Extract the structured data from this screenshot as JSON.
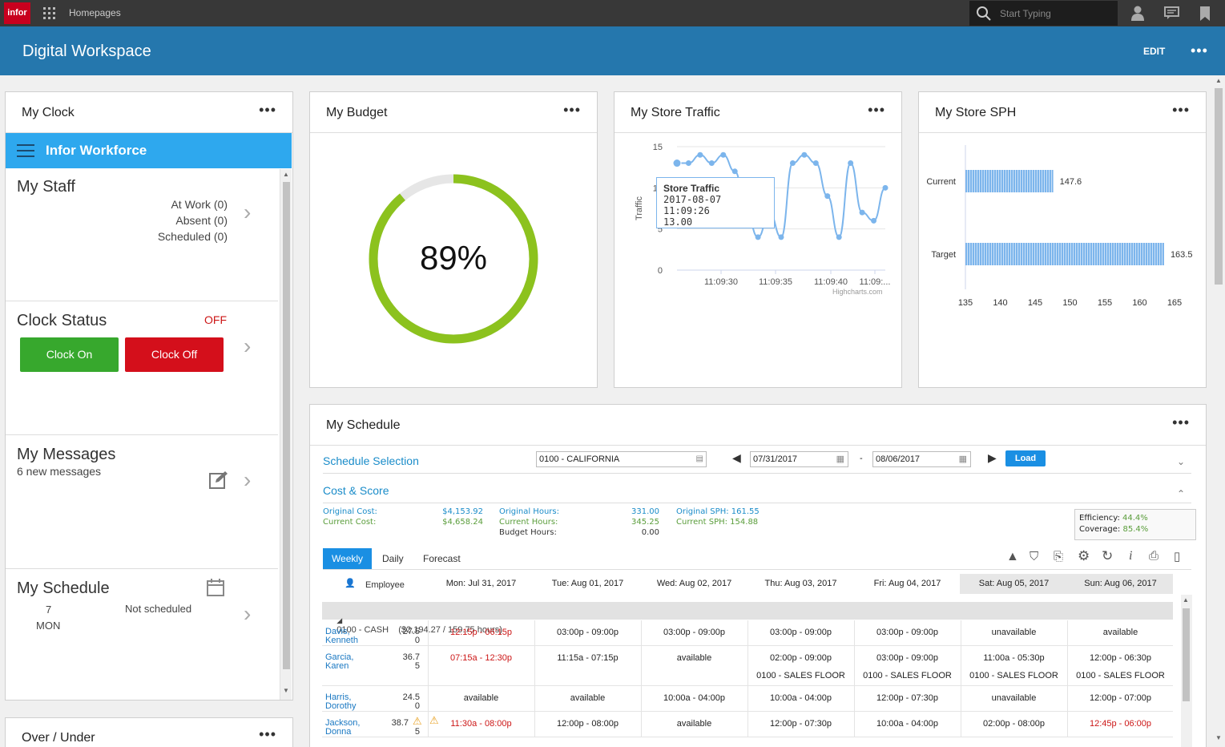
{
  "topbar": {
    "logo": "infor",
    "homepages": "Homepages",
    "search_placeholder": "Start Typing"
  },
  "header": {
    "title": "Digital Workspace",
    "edit": "EDIT"
  },
  "my_clock": {
    "title": "My Clock",
    "app_title": "Infor Workforce",
    "staff": {
      "title": "My Staff",
      "at_work": "At Work (0)",
      "absent": "Absent (0)",
      "scheduled": "Scheduled (0)"
    },
    "clock_status": {
      "title": "Clock Status",
      "status": "OFF",
      "clock_on": "Clock On",
      "clock_off": "Clock Off"
    },
    "messages": {
      "title": "My Messages",
      "subtitle": "6 new messages"
    },
    "schedule": {
      "title": "My Schedule",
      "day_num": "7",
      "day_name": "MON",
      "status": "Not scheduled"
    }
  },
  "over_under": {
    "title": "Over / Under"
  },
  "my_budget": {
    "title": "My Budget",
    "percent_label": "89%",
    "percent": 89
  },
  "my_store_traffic": {
    "title": "My Store Traffic",
    "ylabel": "Traffic",
    "credits": "Highcharts.com",
    "tooltip": {
      "title": "Store Traffic",
      "time": "2017-08-07 11:09:26",
      "value": "13.00"
    }
  },
  "my_store_sph": {
    "title": "My Store SPH"
  },
  "chart_data": [
    {
      "type": "line",
      "ylabel": "Traffic",
      "ylim": [
        0,
        15
      ],
      "y_ticks": [
        "0",
        "5",
        "10",
        "15"
      ],
      "x_ticks": [
        "11:09:30",
        "11:09:35",
        "11:09:40",
        "11:09:..."
      ],
      "series": [
        {
          "name": "Store Traffic",
          "x": [
            0,
            1,
            2,
            3,
            4,
            5,
            6,
            7,
            8,
            9,
            10,
            11,
            12,
            13,
            14,
            15,
            16,
            17,
            18
          ],
          "values": [
            13,
            13,
            14,
            13,
            14,
            12,
            7,
            4,
            7,
            4,
            13,
            14,
            13,
            9,
            4,
            13,
            7,
            6,
            10
          ]
        }
      ]
    },
    {
      "type": "bar",
      "orientation": "horizontal",
      "categories": [
        "Current",
        "Target"
      ],
      "values": [
        147.6,
        163.5
      ],
      "data_labels": [
        "147.6",
        "163.5"
      ],
      "xlim": [
        135,
        165
      ],
      "x_ticks": [
        "135",
        "140",
        "145",
        "150",
        "155",
        "160",
        "165"
      ]
    }
  ],
  "my_schedule": {
    "title": "My Schedule",
    "selection_label": "Schedule Selection",
    "location": "0100 - CALIFORNIA",
    "date_from": "07/31/2017",
    "date_sep": "-",
    "date_to": "08/06/2017",
    "load": "Load",
    "cost_score_label": "Cost & Score",
    "original_cost_label": "Original Cost:",
    "original_cost": "$4,153.92",
    "current_cost_label": "Current Cost:",
    "current_cost": "$4,658.24",
    "original_hours_label": "Original Hours:",
    "original_hours": "331.00",
    "current_hours_label": "Current Hours:",
    "current_hours": "345.25",
    "budget_hours_label": "Budget Hours:",
    "budget_hours": "0.00",
    "original_sph_label": "Original SPH: 161.55",
    "current_sph_label": "Current SPH: 154.88",
    "efficiency_label": "Efficiency:",
    "efficiency": "44.4%",
    "coverage_label": "Coverage:",
    "coverage": "85.4%",
    "tabs": [
      "Weekly",
      "Daily",
      "Forecast"
    ],
    "employee_header": "Employee",
    "days": [
      "Mon: Jul 31, 2017",
      "Tue: Aug 01, 2017",
      "Wed: Aug 02, 2017",
      "Thu: Aug 03, 2017",
      "Fri: Aug 04, 2017",
      "Sat: Aug 05, 2017",
      "Sun: Aug 06, 2017"
    ],
    "group": "0100 - CASH    ($2,194.27 / 159.75 hours)",
    "rows": [
      {
        "first": "Davis,",
        "last": "Kenneth",
        "hours": "27.5",
        "sub": "0",
        "cells": [
          "12:15p - 06:15p",
          "03:00p - 09:00p",
          "03:00p - 09:00p",
          "03:00p - 09:00p",
          "03:00p - 09:00p",
          "unavailable",
          "available"
        ],
        "cells2": [
          "",
          "",
          "",
          "",
          "",
          "",
          ""
        ]
      },
      {
        "first": "Garcia,",
        "last": "Karen",
        "hours": "36.7",
        "sub": "5",
        "cells": [
          "07:15a - 12:30p",
          "11:15a - 07:15p",
          "available",
          "02:00p - 09:00p",
          "03:00p - 09:00p",
          "11:00a - 05:30p",
          "12:00p - 06:30p"
        ],
        "cells2": [
          "",
          "",
          "",
          "0100 - SALES FLOOR",
          "0100 - SALES FLOOR",
          "0100 - SALES FLOOR",
          "0100 - SALES FLOOR"
        ]
      },
      {
        "first": "Harris,",
        "last": "Dorothy",
        "hours": "24.5",
        "sub": "0",
        "cells": [
          "available",
          "available",
          "10:00a - 04:00p",
          "10:00a - 04:00p",
          "12:00p - 07:30p",
          "unavailable",
          "12:00p - 07:00p"
        ],
        "cells2": [
          "",
          "",
          "",
          "",
          "",
          "",
          ""
        ]
      },
      {
        "first": "Jackson,",
        "last": "Donna",
        "hours": "38.7",
        "sub": "5",
        "cells": [
          "11:30a - 08:00p",
          "12:00p - 08:00p",
          "available",
          "12:00p - 07:30p",
          "10:00a - 04:00p",
          "02:00p - 08:00p",
          "12:45p - 06:00p"
        ],
        "cells2": [
          "",
          "",
          "",
          "",
          "",
          "",
          ""
        ]
      }
    ]
  }
}
